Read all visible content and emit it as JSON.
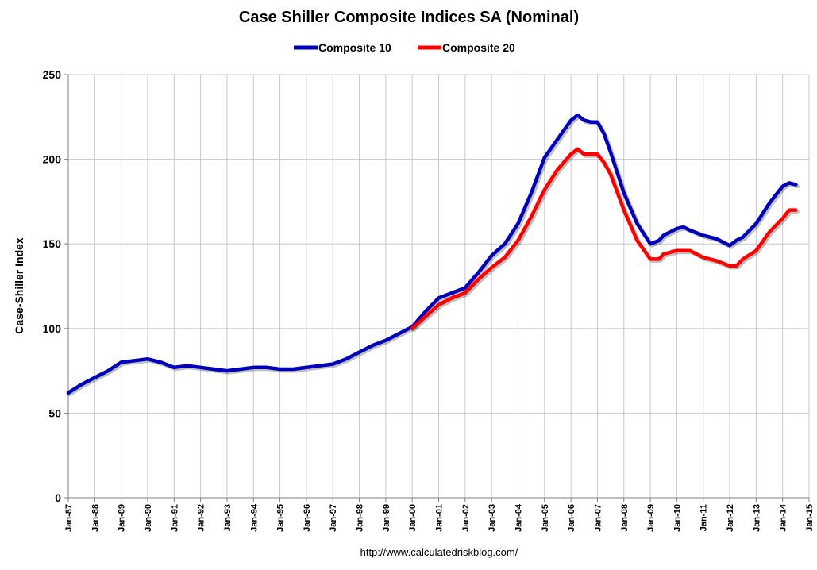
{
  "chart_data": {
    "type": "line",
    "title": "Case Shiller Composite Indices SA (Nominal)",
    "ylabel": "Case-Shiller Index",
    "xlabel": "",
    "ylim": [
      0,
      250
    ],
    "yticks": [
      0,
      50,
      100,
      150,
      200,
      250
    ],
    "xlim": [
      1987.0,
      2015.0
    ],
    "xtick_labels": [
      "Jan-87",
      "Jan-88",
      "Jan-89",
      "Jan-90",
      "Jan-91",
      "Jan-92",
      "Jan-93",
      "Jan-94",
      "Jan-95",
      "Jan-96",
      "Jan-97",
      "Jan-98",
      "Jan-99",
      "Jan-00",
      "Jan-01",
      "Jan-02",
      "Jan-03",
      "Jan-04",
      "Jan-05",
      "Jan-06",
      "Jan-07",
      "Jan-08",
      "Jan-09",
      "Jan-10",
      "Jan-11",
      "Jan-12",
      "Jan-13",
      "Jan-14",
      "Jan-15"
    ],
    "grid": true,
    "legend": "top-center",
    "source": "http://www.calculatedriskblog.com/",
    "series": [
      {
        "name": "Composite 10",
        "color": "#0000BB",
        "x": [
          1987.0,
          1987.5,
          1988.0,
          1988.5,
          1989.0,
          1989.5,
          1990.0,
          1990.5,
          1991.0,
          1991.5,
          1992.0,
          1992.5,
          1993.0,
          1993.5,
          1994.0,
          1994.5,
          1995.0,
          1995.5,
          1996.0,
          1996.5,
          1997.0,
          1997.5,
          1998.0,
          1998.5,
          1999.0,
          1999.5,
          2000.0,
          2000.5,
          2001.0,
          2001.5,
          2002.0,
          2002.5,
          2003.0,
          2003.5,
          2004.0,
          2004.5,
          2005.0,
          2005.5,
          2006.0,
          2006.25,
          2006.5,
          2006.75,
          2007.0,
          2007.25,
          2007.5,
          2008.0,
          2008.5,
          2009.0,
          2009.33,
          2009.5,
          2010.0,
          2010.25,
          2010.5,
          2011.0,
          2011.5,
          2012.0,
          2012.25,
          2012.5,
          2013.0,
          2013.5,
          2014.0,
          2014.25,
          2014.5
        ],
        "values": [
          62,
          67,
          71,
          75,
          80,
          81,
          82,
          80,
          77,
          78,
          77,
          76,
          75,
          76,
          77,
          77,
          76,
          76,
          77,
          78,
          79,
          82,
          86,
          90,
          93,
          97,
          101,
          110,
          118,
          121,
          124,
          133,
          143,
          150,
          162,
          180,
          201,
          212,
          223,
          226,
          223,
          222,
          222,
          215,
          204,
          180,
          162,
          150,
          152,
          155,
          159,
          160,
          158,
          155,
          153,
          149,
          152,
          154,
          162,
          174,
          184,
          186,
          185
        ]
      },
      {
        "name": "Composite 20",
        "color": "#FF0000",
        "x": [
          2000.0,
          2000.5,
          2001.0,
          2001.5,
          2002.0,
          2002.5,
          2003.0,
          2003.5,
          2004.0,
          2004.5,
          2005.0,
          2005.5,
          2006.0,
          2006.25,
          2006.5,
          2006.75,
          2007.0,
          2007.25,
          2007.5,
          2008.0,
          2008.5,
          2009.0,
          2009.33,
          2009.5,
          2010.0,
          2010.5,
          2011.0,
          2011.5,
          2012.0,
          2012.25,
          2012.5,
          2013.0,
          2013.5,
          2014.0,
          2014.25,
          2014.5
        ],
        "values": [
          100,
          107,
          114,
          118,
          121,
          129,
          136,
          142,
          152,
          166,
          182,
          194,
          203,
          206,
          203,
          203,
          203,
          198,
          191,
          170,
          152,
          141,
          141,
          144,
          146,
          146,
          142,
          140,
          137,
          137,
          141,
          146,
          157,
          165,
          170,
          170
        ]
      }
    ]
  }
}
